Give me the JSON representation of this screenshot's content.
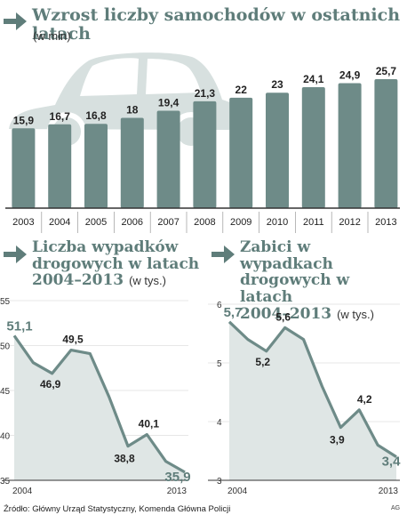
{
  "source": "Źródło: Główny Urząd Statystyczny, Komenda Główna Policji",
  "credit": "AG",
  "colors": {
    "accent": "#5f7d7a",
    "bar": "#6e8b88",
    "area": "#dfe6e5",
    "car": "#d7e0df"
  },
  "icons": {
    "header": "arrow-right-icon",
    "illustration": "car-icon"
  },
  "chart_data": [
    {
      "type": "bar",
      "title": "Wzrost liczby samochodów w ostatnich latach",
      "subtitle": "(w mln)",
      "categories": [
        "2003",
        "2004",
        "2005",
        "2006",
        "2007",
        "2008",
        "2009",
        "2010",
        "2011",
        "2012",
        "2013"
      ],
      "values": [
        15.9,
        16.7,
        16.8,
        18,
        19.4,
        21.3,
        22,
        23,
        24.1,
        24.9,
        25.7
      ],
      "labels": [
        "15,9",
        "16,7",
        "16,8",
        "18",
        "19,4",
        "21,3",
        "22",
        "23",
        "24,1",
        "24,9",
        "25,7"
      ],
      "grid": false
    },
    {
      "type": "area",
      "title_lines": [
        "Liczba wypadków",
        "drogowych w latach",
        "2004–2013"
      ],
      "unit": "(w tys.)",
      "x": [
        2004,
        2005,
        2006,
        2007,
        2008,
        2009,
        2010,
        2011,
        2012,
        2013
      ],
      "values": [
        51.1,
        48.1,
        46.9,
        49.5,
        49.1,
        44.3,
        38.8,
        40.1,
        37.1,
        35.9
      ],
      "point_labels": {
        "2004": "51,1",
        "2006": "46,9",
        "2007": "49,5",
        "2010": "38,8",
        "2011": "40,1",
        "2013": "35,9"
      },
      "ylim": [
        35,
        55
      ],
      "yticks": [
        "55",
        "50",
        "45",
        "40",
        "35"
      ],
      "xtick_labels": [
        "2004",
        "2013"
      ],
      "grid": true
    },
    {
      "type": "area",
      "title_lines": [
        "Zabici w wypadkach",
        "drogowych w latach",
        "2004–2013"
      ],
      "unit": "(w tys.)",
      "x": [
        2004,
        2005,
        2006,
        2007,
        2008,
        2009,
        2010,
        2011,
        2012,
        2013
      ],
      "values": [
        5.7,
        5.4,
        5.2,
        5.6,
        5.4,
        4.6,
        3.9,
        4.2,
        3.6,
        3.4
      ],
      "point_labels": {
        "2004": "5,7",
        "2006": "5,2",
        "2007": "5,6",
        "2010": "3,9",
        "2011": "4,2",
        "2013": "3,4"
      },
      "ylim": [
        3,
        6
      ],
      "yticks": [
        "6",
        "5",
        "4",
        "3"
      ],
      "xtick_labels": [
        "2004",
        "2013"
      ],
      "grid": true
    }
  ]
}
